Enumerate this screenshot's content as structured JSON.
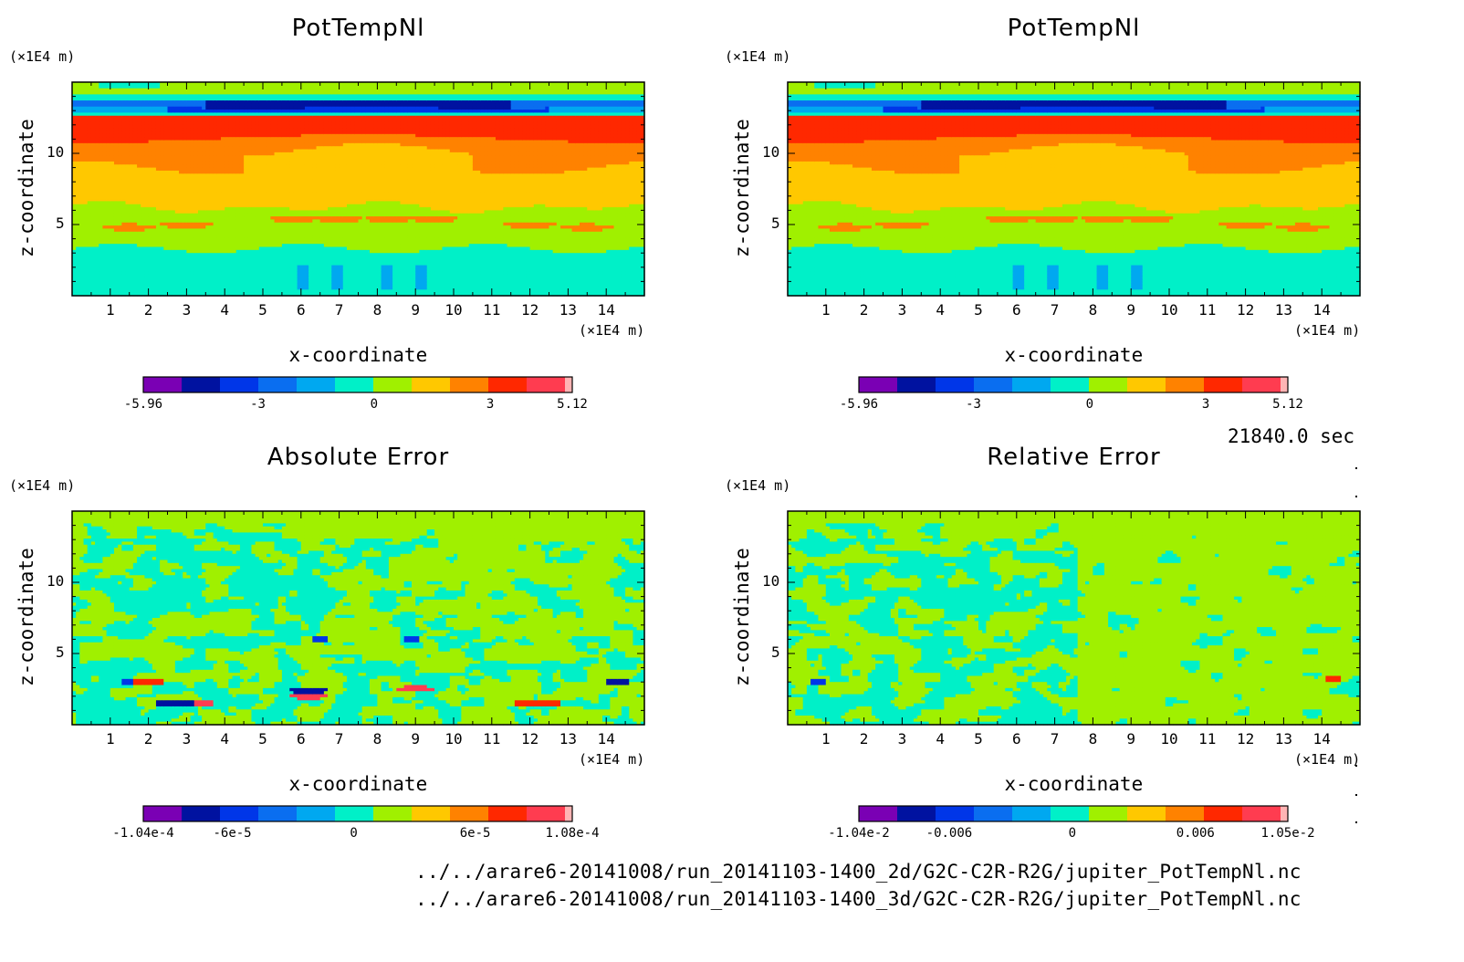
{
  "chart_data": [
    {
      "type": "heatmap",
      "title": "PotTempNl",
      "xlabel": "x-coordinate",
      "ylabel": "z-coordinate",
      "x_unit": "(×1E4 m)",
      "y_unit": "(×1E4 m)",
      "xlim": [
        0,
        15
      ],
      "ylim": [
        0,
        15
      ],
      "x_ticks": [
        "1",
        "2",
        "3",
        "4",
        "5",
        "6",
        "7",
        "8",
        "9",
        "10",
        "11",
        "12",
        "13",
        "14"
      ],
      "y_ticks": [
        "5",
        "10"
      ],
      "colorbar": {
        "min": -5.96,
        "max": 5.12,
        "labels": [
          "-5.96",
          "-3",
          "0",
          "3",
          "5.12"
        ],
        "label_values": [
          -5.96,
          -3,
          0,
          3,
          5.12
        ]
      },
      "field": "potential-temperature"
    },
    {
      "type": "heatmap",
      "title": "PotTempNl",
      "xlabel": "x-coordinate",
      "ylabel": "z-coordinate",
      "x_unit": "(×1E4 m)",
      "y_unit": "(×1E4 m)",
      "xlim": [
        0,
        15
      ],
      "ylim": [
        0,
        15
      ],
      "x_ticks": [
        "1",
        "2",
        "3",
        "4",
        "5",
        "6",
        "7",
        "8",
        "9",
        "10",
        "11",
        "12",
        "13",
        "14"
      ],
      "y_ticks": [
        "5",
        "10"
      ],
      "colorbar": {
        "min": -5.96,
        "max": 5.12,
        "labels": [
          "-5.96",
          "-3",
          "0",
          "3",
          "5.12"
        ],
        "label_values": [
          -5.96,
          -3,
          0,
          3,
          5.12
        ]
      },
      "field": "potential-temperature"
    },
    {
      "type": "heatmap",
      "title": "Absolute Error",
      "xlabel": "x-coordinate",
      "ylabel": "z-coordinate",
      "x_unit": "(×1E4 m)",
      "y_unit": "(×1E4 m)",
      "xlim": [
        0,
        15
      ],
      "ylim": [
        0,
        15
      ],
      "x_ticks": [
        "1",
        "2",
        "3",
        "4",
        "5",
        "6",
        "7",
        "8",
        "9",
        "10",
        "11",
        "12",
        "13",
        "14"
      ],
      "y_ticks": [
        "5",
        "10"
      ],
      "colorbar": {
        "min": -0.000104,
        "max": 0.000108,
        "labels": [
          "-1.04e-4",
          "-6e-5",
          "0",
          "6e-5",
          "1.08e-4"
        ],
        "label_values": [
          -0.000104,
          -6e-05,
          0,
          6e-05,
          0.000108
        ]
      },
      "field": "absolute-error"
    },
    {
      "type": "heatmap",
      "title": "Relative Error",
      "xlabel": "x-coordinate",
      "ylabel": "z-coordinate",
      "x_unit": "(×1E4 m)",
      "y_unit": "(×1E4 m)",
      "xlim": [
        0,
        15
      ],
      "ylim": [
        0,
        15
      ],
      "x_ticks": [
        "1",
        "2",
        "3",
        "4",
        "5",
        "6",
        "7",
        "8",
        "9",
        "10",
        "11",
        "12",
        "13",
        "14"
      ],
      "y_ticks": [
        "5",
        "10"
      ],
      "colorbar": {
        "min": -0.0104,
        "max": 0.0105,
        "labels": [
          "-1.04e-2",
          "-0.006",
          "0",
          "0.006",
          "1.05e-2"
        ],
        "label_values": [
          -0.0104,
          -0.006,
          0,
          0.006,
          0.0105
        ]
      },
      "field": "relative-error"
    }
  ],
  "colors": [
    "#7a00b4",
    "#0012a0",
    "#0036e8",
    "#0a6ef0",
    "#00a8f0",
    "#00f0c8",
    "#a0f000",
    "#ffc800",
    "#ff8200",
    "#ff2800",
    "#ff3c50",
    "#ffb4b4"
  ],
  "time_label": "21840.0 sec",
  "file_paths": [
    "../../arare6-20141008/run_20141103-1400_2d/G2C-C2R-R2G/jupiter_PotTempNl.nc",
    "../../arare6-20141008/run_20141103-1400_3d/G2C-C2R-R2G/jupiter_PotTempNl.nc"
  ]
}
